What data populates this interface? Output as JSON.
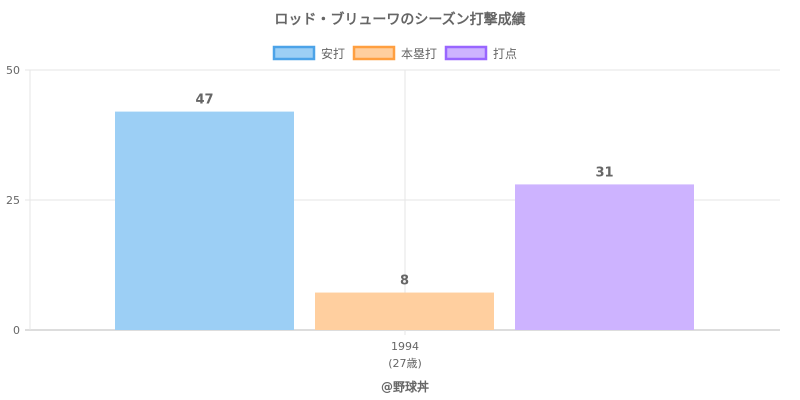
{
  "chart_data": {
    "type": "bar",
    "title": "ロッド・ブリューワのシーズン打撃成績",
    "categories": [
      "1994"
    ],
    "category_sublabels": [
      "(27歳)"
    ],
    "series": [
      {
        "name": "安打",
        "values": [
          47
        ],
        "bar_height": [
          42
        ],
        "fill": "#9ccff5",
        "stroke": "#4ca3e8"
      },
      {
        "name": "本塁打",
        "values": [
          8
        ],
        "bar_height": [
          7.2
        ],
        "fill": "#ffcf9f",
        "stroke": "#ff9f40"
      },
      {
        "name": "打点",
        "values": [
          31
        ],
        "bar_height": [
          28
        ],
        "fill": "#cdb3ff",
        "stroke": "#9966ff"
      }
    ],
    "ylim": [
      0,
      50
    ],
    "yticks": [
      "0",
      "25",
      "50"
    ],
    "grid": true,
    "legend": "top",
    "credit": "@野球丼"
  }
}
